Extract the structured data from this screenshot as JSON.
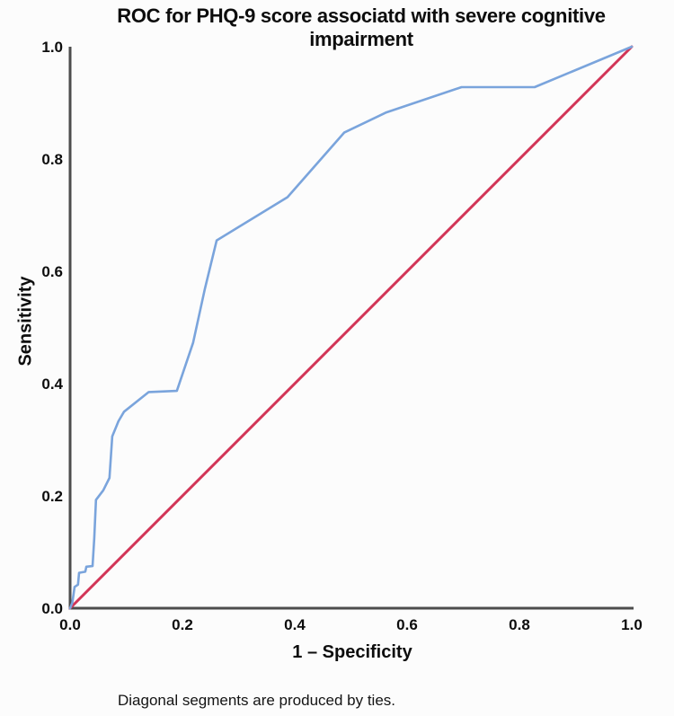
{
  "accent_colors": {
    "roc_curve": "#7aa4dc",
    "reference_line": "#d23557",
    "axis_line": "#4d4d4d"
  },
  "chart_data": {
    "type": "line",
    "title": "ROC for PHQ-9 score associatd with severe cognitive impairment",
    "xlabel": "1 – Specificity",
    "ylabel": "Sensitivity",
    "footnote": "Diagonal segments are produced by ties.",
    "xlim": [
      0.0,
      1.0
    ],
    "ylim": [
      0.0,
      1.0
    ],
    "grid": false,
    "legend": "none",
    "x_ticks": [
      "0.0",
      "0.2",
      "0.4",
      "0.6",
      "0.8",
      "1.0"
    ],
    "y_ticks": [
      "0.0",
      "0.2",
      "0.4",
      "0.6",
      "0.8",
      "1.0"
    ],
    "series": [
      {
        "name": "ROC curve (PHQ-9 score)",
        "color": "#7aa4dc",
        "points": [
          [
            0.0,
            0.0
          ],
          [
            0.004,
            0.01
          ],
          [
            0.008,
            0.038
          ],
          [
            0.014,
            0.042
          ],
          [
            0.016,
            0.063
          ],
          [
            0.027,
            0.065
          ],
          [
            0.029,
            0.074
          ],
          [
            0.04,
            0.075
          ],
          [
            0.043,
            0.125
          ],
          [
            0.046,
            0.193
          ],
          [
            0.059,
            0.21
          ],
          [
            0.07,
            0.232
          ],
          [
            0.075,
            0.306
          ],
          [
            0.086,
            0.333
          ],
          [
            0.096,
            0.35
          ],
          [
            0.14,
            0.385
          ],
          [
            0.19,
            0.387
          ],
          [
            0.219,
            0.473
          ],
          [
            0.24,
            0.569
          ],
          [
            0.261,
            0.655
          ],
          [
            0.387,
            0.732
          ],
          [
            0.488,
            0.847
          ],
          [
            0.563,
            0.883
          ],
          [
            0.697,
            0.928
          ],
          [
            0.827,
            0.928
          ],
          [
            1.0,
            1.0
          ]
        ]
      },
      {
        "name": "Reference diagonal",
        "color": "#d23557",
        "points": [
          [
            0.0,
            0.0
          ],
          [
            1.0,
            1.0
          ]
        ]
      }
    ]
  }
}
